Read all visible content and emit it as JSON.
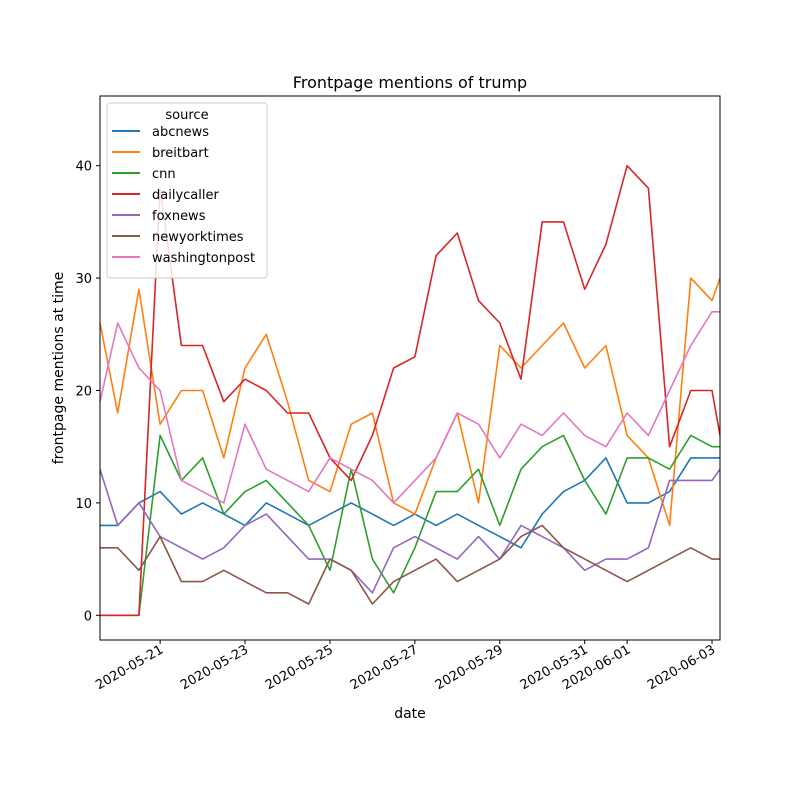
{
  "chart_data": {
    "type": "line",
    "title": "Frontpage mentions of trump",
    "xlabel": "date",
    "ylabel": "frontpage mentions at time",
    "x_ticks": [
      "2020-05-21",
      "2020-05-23",
      "2020-05-25",
      "2020-05-27",
      "2020-05-29",
      "2020-05-31",
      "2020-06-01",
      "2020-06-03"
    ],
    "y_ticks": [
      0,
      10,
      20,
      30,
      40
    ],
    "xlim": [
      "2020-05-19 14:00",
      "2020-06-03 04:30"
    ],
    "ylim": [
      -2.2,
      46.2
    ],
    "grid": false,
    "legend": {
      "title": "source",
      "placement": "top-left"
    },
    "x": [
      "2020-05-19 14:00",
      "2020-05-20 00:00",
      "2020-05-20 12:00",
      "2020-05-21 00:00",
      "2020-05-21 12:00",
      "2020-05-22 00:00",
      "2020-05-22 12:00",
      "2020-05-23 00:00",
      "2020-05-23 12:00",
      "2020-05-24 00:00",
      "2020-05-24 12:00",
      "2020-05-25 00:00",
      "2020-05-25 12:00",
      "2020-05-26 00:00",
      "2020-05-26 12:00",
      "2020-05-27 00:00",
      "2020-05-27 12:00",
      "2020-05-28 00:00",
      "2020-05-28 12:00",
      "2020-05-29 00:00",
      "2020-05-29 12:00",
      "2020-05-30 00:00",
      "2020-05-30 12:00",
      "2020-05-31 00:00",
      "2020-05-31 12:00",
      "2020-06-01 00:00",
      "2020-06-01 12:00",
      "2020-06-02 00:00",
      "2020-06-02 12:00",
      "2020-06-03 00:00",
      "2020-06-03 04:30"
    ],
    "series": [
      {
        "name": "abcnews",
        "color": "#1f77b4",
        "values": [
          8,
          8,
          10,
          11,
          9,
          10,
          9,
          8,
          10,
          9,
          8,
          9,
          10,
          9,
          8,
          9,
          8,
          9,
          8,
          7,
          6,
          9,
          11,
          12,
          14,
          10,
          10,
          11,
          14,
          14,
          14
        ]
      },
      {
        "name": "breitbart",
        "color": "#ff7f0e",
        "values": [
          26,
          18,
          29,
          17,
          20,
          20,
          14,
          22,
          25,
          19,
          12,
          11,
          17,
          18,
          10,
          9,
          14,
          18,
          10,
          24,
          22,
          24,
          26,
          22,
          24,
          16,
          14,
          8,
          30,
          28,
          30
        ]
      },
      {
        "name": "cnn",
        "color": "#2ca02c",
        "values": [
          0,
          0,
          0,
          16,
          12,
          14,
          9,
          11,
          12,
          10,
          8,
          4,
          13,
          5,
          2,
          6,
          11,
          11,
          13,
          8,
          13,
          15,
          16,
          12,
          9,
          14,
          14,
          13,
          16,
          15,
          15
        ]
      },
      {
        "name": "dailycaller",
        "color": "#d62728",
        "values": [
          0,
          0,
          0,
          38,
          24,
          24,
          19,
          21,
          20,
          18,
          18,
          14,
          12,
          16,
          22,
          23,
          32,
          34,
          28,
          26,
          21,
          35,
          35,
          29,
          33,
          40,
          38,
          15,
          20,
          20,
          16
        ]
      },
      {
        "name": "foxnews",
        "color": "#9467bd",
        "values": [
          13,
          8,
          10,
          7,
          6,
          5,
          6,
          8,
          9,
          7,
          5,
          5,
          4,
          2,
          6,
          7,
          6,
          5,
          7,
          5,
          8,
          7,
          6,
          4,
          5,
          5,
          6,
          12,
          12,
          12,
          13
        ]
      },
      {
        "name": "newyorktimes",
        "color": "#8c564b",
        "values": [
          6,
          6,
          4,
          7,
          3,
          3,
          4,
          3,
          2,
          2,
          1,
          5,
          4,
          1,
          3,
          4,
          5,
          3,
          4,
          5,
          7,
          8,
          6,
          5,
          4,
          3,
          4,
          5,
          6,
          5,
          5
        ]
      },
      {
        "name": "washingtonpost",
        "color": "#e377c2",
        "values": [
          19,
          26,
          22,
          20,
          12,
          11,
          10,
          17,
          13,
          12,
          11,
          14,
          13,
          12,
          10,
          12,
          14,
          18,
          17,
          14,
          17,
          16,
          18,
          16,
          15,
          18,
          16,
          20,
          24,
          27,
          27
        ]
      }
    ]
  }
}
